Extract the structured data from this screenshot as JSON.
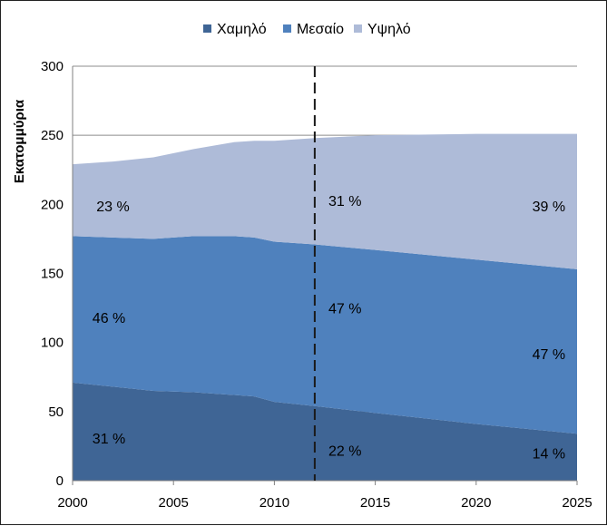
{
  "chart_data": {
    "type": "area",
    "stacked": true,
    "title": "",
    "xlabel": "",
    "ylabel": "Εκατομμύρια",
    "xlim": [
      2000,
      2025
    ],
    "ylim": [
      0,
      300
    ],
    "x_ticks": [
      "2000",
      "2005",
      "2010",
      "2015",
      "2020",
      "2025"
    ],
    "y_ticks": [
      "0",
      "50",
      "100",
      "150",
      "200",
      "250",
      "300"
    ],
    "grid": "horizontal",
    "legend_position": "top",
    "vertical_marker": {
      "x": 2012,
      "style": "dashed"
    },
    "x": [
      2000,
      2002,
      2004,
      2006,
      2008,
      2009,
      2010,
      2012,
      2015,
      2020,
      2025
    ],
    "series": [
      {
        "name": "Χαμηλό",
        "color": "#3f6595",
        "values": [
          71,
          68,
          65,
          64,
          62,
          61,
          57,
          54,
          49,
          41,
          34
        ]
      },
      {
        "name": "Μεσαίο",
        "color": "#4f81bd",
        "values": [
          106,
          108,
          110,
          113,
          115,
          115,
          116,
          117,
          118,
          119,
          119
        ]
      },
      {
        "name": "Υψηλό",
        "color": "#aebbd8",
        "values": [
          52,
          55,
          59,
          63,
          68,
          70,
          73,
          77,
          83,
          91,
          98
        ]
      }
    ],
    "annotations": [
      {
        "text": "31 %",
        "x": 2001.8,
        "y": 31,
        "series": "Χαμηλό"
      },
      {
        "text": "46 %",
        "x": 2001.8,
        "y": 118,
        "series": "Μεσαίο"
      },
      {
        "text": "23 %",
        "x": 2002.0,
        "y": 199,
        "series": "Υψηλό"
      },
      {
        "text": "22 %",
        "x": 2013.5,
        "y": 22,
        "series": "Χαμηλό"
      },
      {
        "text": "47 %",
        "x": 2013.5,
        "y": 125,
        "series": "Μεσαίο"
      },
      {
        "text": "31 %",
        "x": 2013.5,
        "y": 203,
        "series": "Υψηλό"
      },
      {
        "text": "14 %",
        "x": 2023.6,
        "y": 20,
        "series": "Χαμηλό"
      },
      {
        "text": "47 %",
        "x": 2023.6,
        "y": 92,
        "series": "Μεσαίο"
      },
      {
        "text": "39 %",
        "x": 2023.6,
        "y": 199,
        "series": "Υψηλό"
      }
    ]
  }
}
